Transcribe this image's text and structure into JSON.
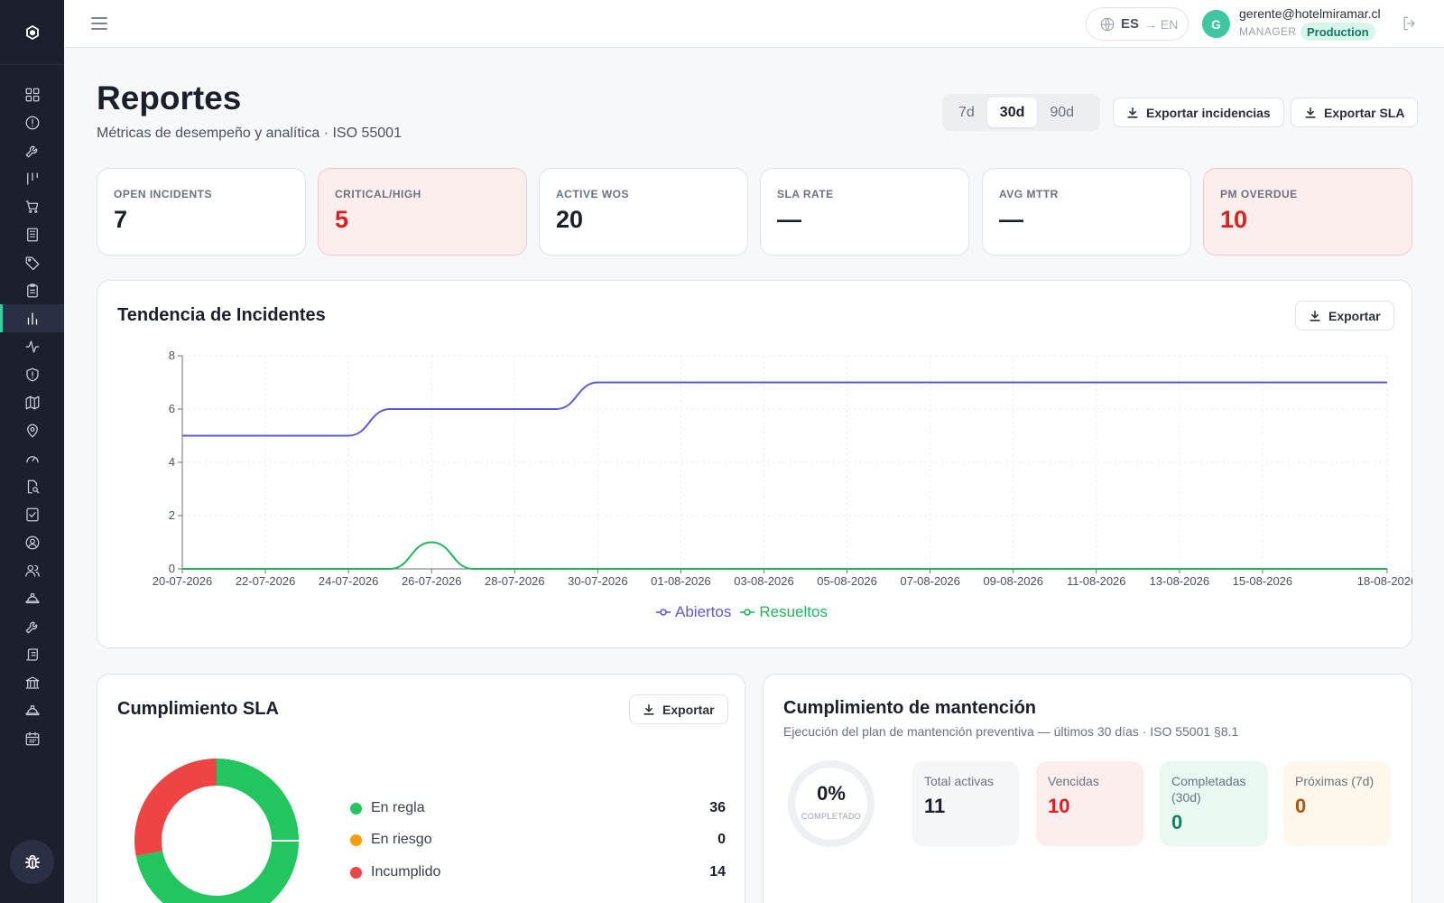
{
  "topbar": {
    "lang_current": "ES",
    "lang_alt": "→ EN",
    "avatar_initial": "G",
    "user_email": "gerente@hotelmiramar.cl",
    "user_role": "MANAGER",
    "env_badge": "Production"
  },
  "header": {
    "title": "Reportes",
    "subtitle": "Métricas de desempeño y analítica · ISO 55001",
    "ranges": [
      "7d",
      "30d",
      "90d"
    ],
    "active_range": "30d",
    "export_incidents": "Exportar incidencias",
    "export_sla": "Exportar SLA"
  },
  "kpis": [
    {
      "label": "OPEN INCIDENTS",
      "value": "7",
      "highlight": false
    },
    {
      "label": "CRITICAL/HIGH",
      "value": "5",
      "highlight": true
    },
    {
      "label": "ACTIVE WOS",
      "value": "20",
      "highlight": false
    },
    {
      "label": "SLA RATE",
      "value": "—",
      "highlight": false
    },
    {
      "label": "AVG MTTR",
      "value": "—",
      "highlight": false
    },
    {
      "label": "PM OVERDUE",
      "value": "10",
      "highlight": true
    }
  ],
  "trend": {
    "title": "Tendencia de Incidentes",
    "export": "Exportar"
  },
  "chart_data": {
    "type": "line",
    "title": "Tendencia de Incidentes",
    "x": [
      "20-07-2026",
      "21-07-2026",
      "22-07-2026",
      "23-07-2026",
      "24-07-2026",
      "25-07-2026",
      "26-07-2026",
      "27-07-2026",
      "28-07-2026",
      "29-07-2026",
      "30-07-2026",
      "31-07-2026",
      "01-08-2026",
      "02-08-2026",
      "03-08-2026",
      "04-08-2026",
      "05-08-2026",
      "06-08-2026",
      "07-08-2026",
      "08-08-2026",
      "09-08-2026",
      "10-08-2026",
      "11-08-2026",
      "12-08-2026",
      "13-08-2026",
      "14-08-2026",
      "15-08-2026",
      "16-08-2026",
      "17-08-2026",
      "18-08-2026"
    ],
    "tick_labels": [
      "20-07-2026",
      "22-07-2026",
      "24-07-2026",
      "26-07-2026",
      "28-07-2026",
      "30-07-2026",
      "01-08-2026",
      "03-08-2026",
      "05-08-2026",
      "07-08-2026",
      "09-08-2026",
      "11-08-2026",
      "13-08-2026",
      "15-08-2026",
      "18-08-2026"
    ],
    "series": [
      {
        "name": "Abiertos",
        "color": "#5b5bd6",
        "values": [
          5,
          5,
          5,
          5,
          5,
          6,
          6,
          6,
          6,
          6,
          7,
          7,
          7,
          7,
          7,
          7,
          7,
          7,
          7,
          7,
          7,
          7,
          7,
          7,
          7,
          7,
          7,
          7,
          7,
          7
        ]
      },
      {
        "name": "Resueltos",
        "color": "#22b35e",
        "values": [
          0,
          0,
          0,
          0,
          0,
          0,
          1,
          0,
          0,
          0,
          0,
          0,
          0,
          0,
          0,
          0,
          0,
          0,
          0,
          0,
          0,
          0,
          0,
          0,
          0,
          0,
          0,
          0,
          0,
          0
        ]
      }
    ],
    "yticks": [
      0,
      2,
      4,
      6,
      8
    ],
    "ylim": [
      0,
      8
    ],
    "grid": true,
    "legend": "bottom"
  },
  "sla": {
    "title": "Cumplimiento SLA",
    "export": "Exportar",
    "items": [
      {
        "label": "En regla",
        "value": "36",
        "count": 36,
        "color": "#22c55e"
      },
      {
        "label": "En riesgo",
        "value": "0",
        "count": 0,
        "color": "#f59e0b"
      },
      {
        "label": "Incumplido",
        "value": "14",
        "count": 14,
        "color": "#ef4444"
      }
    ]
  },
  "maint": {
    "title": "Cumplimiento de mantención",
    "subtitle": "Ejecución del plan de mantención preventiva — últimos 30 días · ISO 55001 §8.1",
    "pct": "0%",
    "pct_label": "COMPLETADO",
    "tiles": [
      {
        "label": "Total activas",
        "value": "11",
        "bg": "#f5f6f8",
        "color": "#1b1f2b"
      },
      {
        "label": "Vencidas",
        "value": "10",
        "bg": "#fdeeee",
        "color": "#dc1f1f"
      },
      {
        "label": "Completadas (30d)",
        "value": "0",
        "bg": "#e9f8f1",
        "color": "#12805f"
      },
      {
        "label": "Próximas (7d)",
        "value": "0",
        "bg": "#fef8ec",
        "color": "#b45309"
      }
    ]
  },
  "sidebar": {
    "icons": [
      "dashboard-icon",
      "alert-circle-icon",
      "wrench-icon",
      "kanban-icon",
      "cart-icon",
      "building-icon",
      "tag-icon",
      "clipboard-icon",
      "bar-chart-icon",
      "activity-icon",
      "shield-icon",
      "map-icon",
      "map-pin-icon",
      "gauge-icon",
      "file-search-icon",
      "checklist-icon",
      "user-circle-icon",
      "users-icon",
      "hard-hat-icon",
      "tool-icon",
      "scroll-icon",
      "landmark-icon",
      "hard-hat-2-icon",
      "calendar-icon"
    ],
    "active": "bar-chart-icon"
  }
}
